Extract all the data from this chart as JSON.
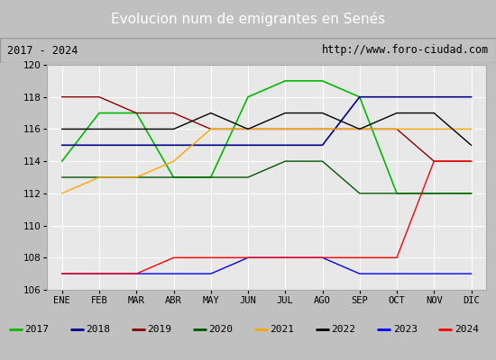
{
  "title": "Evolucion num de emigrantes en Senés",
  "subtitle_left": "2017 - 2024",
  "subtitle_right": "http://www.foro-ciudad.com",
  "months": [
    "ENE",
    "FEB",
    "MAR",
    "ABR",
    "MAY",
    "JUN",
    "JUL",
    "AGO",
    "SEP",
    "OCT",
    "NOV",
    "DIC"
  ],
  "ylim": [
    106,
    120
  ],
  "yticks": [
    106,
    108,
    110,
    112,
    114,
    116,
    118,
    120
  ],
  "series": {
    "2017": {
      "color": "#00bb00",
      "values": [
        114,
        117,
        117,
        113,
        113,
        118,
        119,
        119,
        118,
        112,
        112,
        112
      ],
      "ls": "-",
      "lw": 1.2
    },
    "2018": {
      "color": "#00008b",
      "values": [
        115,
        115,
        115,
        115,
        115,
        115,
        115,
        115,
        118,
        118,
        118,
        118
      ],
      "ls": "-",
      "lw": 1.2
    },
    "2019": {
      "color": "#8b0000",
      "values": [
        118,
        118,
        117,
        117,
        116,
        116,
        116,
        116,
        116,
        116,
        114,
        114
      ],
      "ls": "-",
      "lw": 1.0
    },
    "2020": {
      "color": "#005500",
      "values": [
        113,
        113,
        113,
        113,
        113,
        113,
        114,
        114,
        112,
        112,
        112,
        112
      ],
      "ls": "-",
      "lw": 1.0
    },
    "2021": {
      "color": "#ffa500",
      "values": [
        112,
        113,
        113,
        114,
        116,
        116,
        116,
        116,
        116,
        116,
        116,
        116
      ],
      "ls": "-",
      "lw": 1.0
    },
    "2022": {
      "color": "#000000",
      "values": [
        116,
        116,
        116,
        116,
        117,
        116,
        117,
        117,
        116,
        117,
        117,
        115
      ],
      "ls": "-",
      "lw": 1.0
    },
    "2023": {
      "color": "#0000ff",
      "values": [
        107,
        107,
        107,
        107,
        107,
        108,
        108,
        108,
        107,
        107,
        107,
        107
      ],
      "ls": "-",
      "lw": 1.0
    },
    "2024": {
      "color": "#ff0000",
      "values": [
        107,
        107,
        107,
        108,
        108,
        108,
        108,
        108,
        108,
        108,
        114,
        114
      ],
      "ls": "-",
      "lw": 1.0
    }
  },
  "legend_order": [
    "2017",
    "2018",
    "2019",
    "2020",
    "2021",
    "2022",
    "2023",
    "2024"
  ],
  "title_bg": "#4472c4",
  "title_color": "#ffffff",
  "subtitle_bg": "#d4d4d4",
  "plot_bg": "#e8e8e8",
  "grid_color": "#ffffff"
}
